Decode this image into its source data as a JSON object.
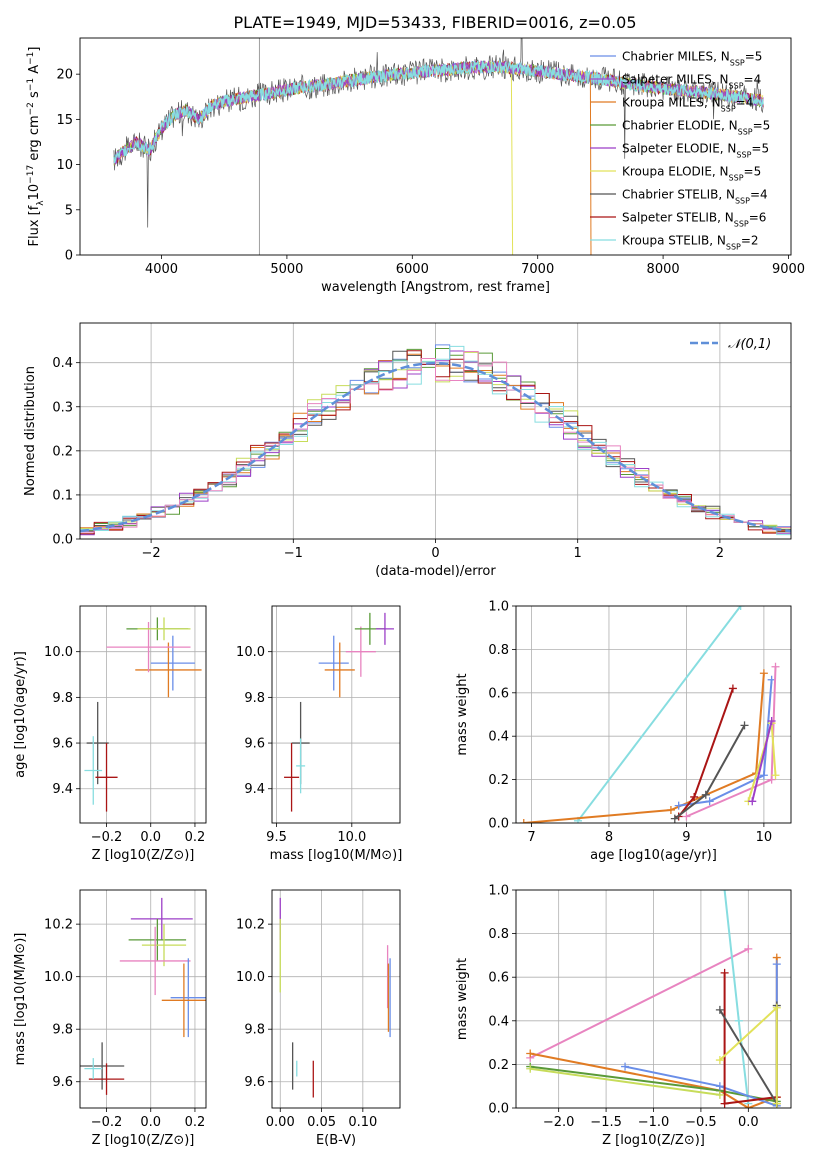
{
  "title": "PLATE=1949, MJD=53433, FIBERID=0016, z=0.05",
  "colors": {
    "Chabrier MILES": "#6a8ee8",
    "Salpeter MILES": "#a44cc9",
    "Kroupa MILES": "#e07b23",
    "Chabrier ELODIE": "#5a9a38",
    "Salpeter ELODIE": "#9c3fc7",
    "Kroupa ELODIE": "#e2e25a",
    "Chabrier STELIB": "#555555",
    "Salpeter STELIB": "#aa1515",
    "Kroupa STELIB": "#87dde0",
    "pink": "#e884c0",
    "olive": "#c7dc5a",
    "gaussian": "#5f8fd8"
  },
  "chart_data": [
    {
      "id": "spectrum",
      "type": "line",
      "xlabel": "wavelength [Angstrom, rest frame]",
      "ylabel": "Flux [f_λ10^-17 erg cm^-2 s^-1 A^-1]",
      "xlim": [
        3350,
        9020
      ],
      "ylim": [
        0,
        24
      ],
      "xticks": [
        4000,
        5000,
        6000,
        7000,
        8000,
        9000
      ],
      "yticks": [
        0,
        5,
        10,
        15,
        20
      ],
      "legend_position": "upper right",
      "series": [
        {
          "name": "Chabrier MILES",
          "nssp": "5"
        },
        {
          "name": "Salpeter MILES",
          "nssp": "4"
        },
        {
          "name": "Kroupa MILES",
          "nssp": "4"
        },
        {
          "name": "Chabrier ELODIE",
          "nssp": "5"
        },
        {
          "name": "Salpeter ELODIE",
          "nssp": "5"
        },
        {
          "name": "Kroupa ELODIE",
          "nssp": "5"
        },
        {
          "name": "Chabrier STELIB",
          "nssp": "4"
        },
        {
          "name": "Salpeter STELIB",
          "nssp": "6"
        },
        {
          "name": "Kroupa STELIB",
          "nssp": "2"
        }
      ],
      "continuum": {
        "x": [
          3620,
          3700,
          3800,
          3900,
          4000,
          4100,
          4200,
          4300,
          4400,
          4500,
          4700,
          4900,
          5100,
          5300,
          5500,
          5700,
          5900,
          6100,
          6300,
          6500,
          6700,
          6900,
          7100,
          7300,
          7500,
          7700,
          7900,
          8100,
          8300,
          8500,
          8700,
          8800
        ],
        "y": [
          10.5,
          11.5,
          12.5,
          11.5,
          14.0,
          15.5,
          16.0,
          15.0,
          16.5,
          17.0,
          17.5,
          18.0,
          18.5,
          18.8,
          19.3,
          19.7,
          20.0,
          20.3,
          20.5,
          20.8,
          20.8,
          20.5,
          20.2,
          19.8,
          19.5,
          19.0,
          18.6,
          18.3,
          18.0,
          17.7,
          17.3,
          17.0
        ]
      }
    },
    {
      "id": "residuals",
      "type": "bar",
      "xlabel": "(data-model)/error",
      "ylabel": "Normed distribution",
      "xlim": [
        -2.5,
        2.5
      ],
      "ylim": [
        0,
        0.49
      ],
      "xticks": [
        -2,
        -1,
        0,
        1,
        2
      ],
      "yticks": [
        0.0,
        0.1,
        0.2,
        0.3,
        0.4
      ],
      "legend": "𝒩(0,1)",
      "bin_width": 0.1,
      "bin_start": -2.5
    },
    {
      "id": "age-vs-Z",
      "type": "scatter",
      "xlabel": "Z [log10(Z/Z⊙)]",
      "ylabel": "age  [log10(age/yr)]",
      "xlim": [
        -0.32,
        0.25
      ],
      "ylim": [
        9.25,
        10.2
      ],
      "xticks": [
        -0.2,
        0.0,
        0.2
      ],
      "yticks": [
        9.4,
        9.6,
        9.8,
        10.0
      ],
      "points": [
        {
          "c": "Chabrier MILES",
          "x": 0.1,
          "xe": 0.1,
          "y": 9.95,
          "ye": 0.12
        },
        {
          "c": "Kroupa MILES",
          "x": 0.08,
          "xe": 0.15,
          "y": 9.92,
          "ye": 0.12
        },
        {
          "c": "pink",
          "x": -0.01,
          "xe": 0.19,
          "y": 10.02,
          "ye": 0.11
        },
        {
          "c": "Chabrier ELODIE",
          "x": 0.03,
          "xe": 0.14,
          "y": 10.1,
          "ye": 0.05
        },
        {
          "c": "olive",
          "x": 0.06,
          "xe": 0.12,
          "y": 10.1,
          "ye": 0.05
        },
        {
          "c": "Chabrier STELIB",
          "x": -0.24,
          "xe": 0.05,
          "y": 9.6,
          "ye": 0.18
        },
        {
          "c": "Salpeter STELIB",
          "x": -0.2,
          "xe": 0.05,
          "y": 9.45,
          "ye": 0.15
        },
        {
          "c": "Kroupa STELIB",
          "x": -0.26,
          "xe": 0.04,
          "y": 9.48,
          "ye": 0.15
        }
      ]
    },
    {
      "id": "age-vs-mass",
      "type": "scatter",
      "xlabel": "mass [log10(M/M⊙)]",
      "ylabel": "",
      "xlim": [
        9.47,
        10.32
      ],
      "ylim": [
        9.25,
        10.2
      ],
      "xticks": [
        9.5,
        10.0
      ],
      "yticks": [
        9.4,
        9.6,
        9.8,
        10.0
      ],
      "points": [
        {
          "c": "Chabrier MILES",
          "x": 9.88,
          "xe": 0.1,
          "y": 9.95,
          "ye": 0.12
        },
        {
          "c": "Kroupa MILES",
          "x": 9.92,
          "xe": 0.1,
          "y": 9.92,
          "ye": 0.12
        },
        {
          "c": "pink",
          "x": 10.06,
          "xe": 0.1,
          "y": 10.0,
          "ye": 0.11
        },
        {
          "c": "Chabrier ELODIE",
          "x": 10.12,
          "xe": 0.1,
          "y": 10.1,
          "ye": 0.07
        },
        {
          "c": "Salpeter ELODIE",
          "x": 10.22,
          "xe": 0.06,
          "y": 10.1,
          "ye": 0.07
        },
        {
          "c": "Chabrier STELIB",
          "x": 9.66,
          "xe": 0.06,
          "y": 9.6,
          "ye": 0.18
        },
        {
          "c": "Salpeter STELIB",
          "x": 9.6,
          "xe": 0.05,
          "y": 9.45,
          "ye": 0.15
        },
        {
          "c": "Kroupa STELIB",
          "x": 9.66,
          "xe": 0.03,
          "y": 9.5,
          "ye": 0.12
        }
      ]
    },
    {
      "id": "mass-weight-vs-age",
      "type": "line",
      "xlabel": "age  [log10(age/yr)]",
      "ylabel": "mass weight",
      "xlim": [
        6.8,
        10.35
      ],
      "ylim": [
        0,
        1.0
      ],
      "xticks": [
        7,
        8,
        9,
        10
      ],
      "yticks": [
        0.0,
        0.2,
        0.4,
        0.6,
        0.8,
        1.0
      ],
      "series": [
        {
          "c": "Kroupa STELIB",
          "x": [
            7.6,
            9.7
          ],
          "y": [
            0.01,
            1.0
          ]
        },
        {
          "c": "Kroupa MILES",
          "x": [
            6.9,
            8.8,
            9.9,
            10.0
          ],
          "y": [
            0.0,
            0.06,
            0.23,
            0.69
          ]
        },
        {
          "c": "Chabrier MILES",
          "x": [
            8.9,
            9.3,
            10.0,
            10.1
          ],
          "y": [
            0.08,
            0.1,
            0.22,
            0.66
          ]
        },
        {
          "c": "Salpeter STELIB",
          "x": [
            8.9,
            9.1,
            9.6
          ],
          "y": [
            0.03,
            0.12,
            0.62
          ]
        },
        {
          "c": "Chabrier STELIB",
          "x": [
            8.85,
            9.25,
            9.75
          ],
          "y": [
            0.02,
            0.13,
            0.45
          ]
        },
        {
          "c": "pink",
          "x": [
            9.0,
            10.1,
            10.15
          ],
          "y": [
            0.03,
            0.2,
            0.72
          ]
        },
        {
          "c": "Kroupa ELODIE",
          "x": [
            9.8,
            10.1,
            10.15
          ],
          "y": [
            0.1,
            0.46,
            0.22
          ]
        },
        {
          "c": "Salpeter ELODIE",
          "x": [
            9.85,
            10.1
          ],
          "y": [
            0.1,
            0.47
          ]
        }
      ]
    },
    {
      "id": "mass-vs-Z",
      "type": "scatter",
      "xlabel": "Z [log10(Z/Z⊙)]",
      "ylabel": "mass [log10(M/M⊙)]",
      "xlim": [
        -0.32,
        0.25
      ],
      "ylim": [
        9.5,
        10.33
      ],
      "xticks": [
        -0.2,
        0.0,
        0.2
      ],
      "yticks": [
        9.6,
        9.8,
        10.0,
        10.2
      ],
      "points": [
        {
          "c": "Salpeter ELODIE",
          "x": 0.05,
          "xe": 0.14,
          "y": 10.22,
          "ye": 0.08
        },
        {
          "c": "Chabrier ELODIE",
          "x": 0.03,
          "xe": 0.13,
          "y": 10.14,
          "ye": 0.08
        },
        {
          "c": "olive",
          "x": 0.06,
          "xe": 0.1,
          "y": 10.12,
          "ye": 0.08
        },
        {
          "c": "pink",
          "x": 0.02,
          "xe": 0.16,
          "y": 10.06,
          "ye": 0.13
        },
        {
          "c": "Chabrier MILES",
          "x": 0.17,
          "xe": 0.08,
          "y": 9.92,
          "ye": 0.15
        },
        {
          "c": "Kroupa MILES",
          "x": 0.15,
          "xe": 0.1,
          "y": 9.91,
          "ye": 0.14
        },
        {
          "c": "Chabrier STELIB",
          "x": -0.22,
          "xe": 0.1,
          "y": 9.66,
          "ye": 0.09
        },
        {
          "c": "Salpeter STELIB",
          "x": -0.2,
          "xe": 0.08,
          "y": 9.61,
          "ye": 0.06
        },
        {
          "c": "Kroupa STELIB",
          "x": -0.26,
          "xe": 0.04,
          "y": 9.65,
          "ye": 0.04
        }
      ]
    },
    {
      "id": "mass-vs-EBV",
      "type": "scatter",
      "xlabel": "E(B-V)",
      "ylabel": "",
      "xlim": [
        -0.01,
        0.145
      ],
      "ylim": [
        9.5,
        10.33
      ],
      "xticks": [
        0.0,
        0.05,
        0.1
      ],
      "yticks": [
        9.6,
        9.8,
        10.0,
        10.2
      ],
      "points": [
        {
          "c": "Salpeter ELODIE",
          "x": 0.0,
          "xe": 0,
          "y": 10.22,
          "ye": 0.08
        },
        {
          "c": "olive",
          "x": 0.0,
          "xe": 0,
          "y": 10.08,
          "ye": 0.14
        },
        {
          "c": "Chabrier STELIB",
          "x": 0.015,
          "xe": 0,
          "y": 9.66,
          "ye": 0.09
        },
        {
          "c": "Kroupa STELIB",
          "x": 0.02,
          "xe": 0,
          "y": 9.65,
          "ye": 0.03
        },
        {
          "c": "Salpeter STELIB",
          "x": 0.04,
          "xe": 0,
          "y": 9.61,
          "ye": 0.07
        },
        {
          "c": "pink",
          "x": 0.13,
          "xe": 0,
          "y": 10.0,
          "ye": 0.12
        },
        {
          "c": "Kroupa MILES",
          "x": 0.131,
          "xe": 0,
          "y": 9.92,
          "ye": 0.13
        },
        {
          "c": "Chabrier MILES",
          "x": 0.133,
          "xe": 0,
          "y": 9.92,
          "ye": 0.15
        }
      ]
    },
    {
      "id": "mass-weight-vs-Z",
      "type": "line",
      "xlabel": "Z [log10(Z/Z⊙)]",
      "ylabel": "mass weight",
      "xlim": [
        -2.45,
        0.45
      ],
      "ylim": [
        0,
        1.0
      ],
      "xticks": [
        -2.0,
        -1.5,
        -1.0,
        -0.5,
        0.0
      ],
      "yticks": [
        0.0,
        0.2,
        0.4,
        0.6,
        0.8,
        1.0
      ],
      "series": [
        {
          "c": "pink",
          "x": [
            -2.3,
            0.0
          ],
          "y": [
            0.23,
            0.73
          ]
        },
        {
          "c": "Kroupa STELIB",
          "x": [
            -0.25,
            -0.1,
            0.0
          ],
          "y": [
            1.0,
            0.4,
            0.02
          ]
        },
        {
          "c": "Kroupa MILES",
          "x": [
            -2.3,
            -0.3,
            0.0,
            0.3,
            0.3
          ],
          "y": [
            0.25,
            0.08,
            0.0,
            0.05,
            0.69
          ]
        },
        {
          "c": "Chabrier ELODIE",
          "x": [
            -2.3,
            -0.3,
            0.3
          ],
          "y": [
            0.19,
            0.08,
            0.03
          ]
        },
        {
          "c": "Chabrier MILES",
          "x": [
            -1.3,
            -0.3,
            0.3,
            0.3
          ],
          "y": [
            0.19,
            0.1,
            0.01,
            0.66
          ]
        },
        {
          "c": "Salpeter STELIB",
          "x": [
            -0.25,
            -0.25,
            0.3
          ],
          "y": [
            0.62,
            0.02,
            0.05
          ]
        },
        {
          "c": "Chabrier STELIB",
          "x": [
            -0.3,
            0.3,
            0.3
          ],
          "y": [
            0.45,
            0.02,
            0.47
          ]
        },
        {
          "c": "Kroupa ELODIE",
          "x": [
            -0.3,
            0.3,
            0.3
          ],
          "y": [
            0.22,
            0.46,
            0.02
          ]
        },
        {
          "c": "olive",
          "x": [
            -2.3,
            -0.3
          ],
          "y": [
            0.18,
            0.06
          ]
        }
      ]
    }
  ]
}
